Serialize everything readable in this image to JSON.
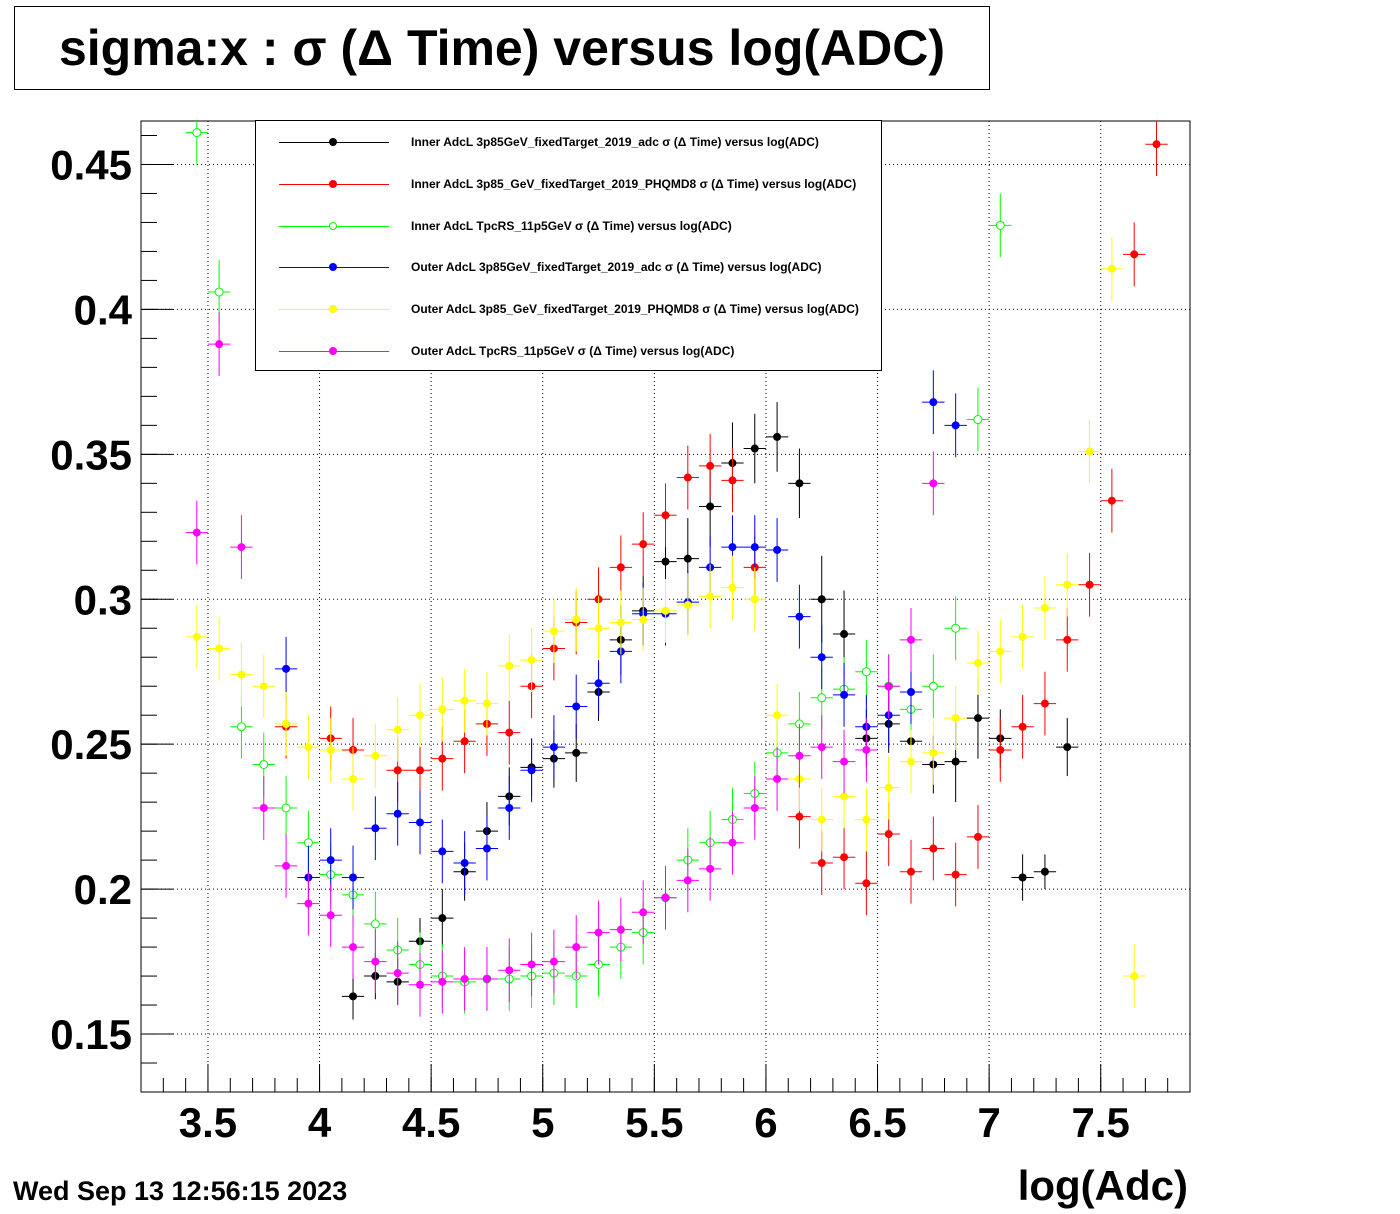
{
  "title": "sigma:x : σ (Δ Time) versus log(ADC)",
  "date": "Wed Sep 13 12:56:15 2023",
  "xlabel": "log(Adc)",
  "chart_data": {
    "type": "scatter",
    "title": "sigma:x : σ (Δ Time) versus log(ADC)",
    "xlabel": "log(Adc)",
    "ylabel": "",
    "xlim": [
      3.2,
      7.9
    ],
    "ylim": [
      0.13,
      0.465
    ],
    "xticks": [
      "3.5",
      "4",
      "4.5",
      "5",
      "5.5",
      "6",
      "6.5",
      "7",
      "7.5"
    ],
    "yticks": [
      "0.15",
      "0.2",
      "0.25",
      "0.3",
      "0.35",
      "0.4",
      "0.45"
    ],
    "grid": true,
    "legend_position": "top",
    "series": [
      {
        "name": "Inner AdcL 3p85GeV_fixedTarget_2019_adc σ (Δ Time) versus log(ADC)",
        "color": "#000000",
        "marker": "filled",
        "x": [
          4.15,
          4.25,
          4.35,
          4.45,
          4.55,
          4.65,
          4.75,
          4.85,
          4.95,
          5.05,
          5.15,
          5.25,
          5.35,
          5.45,
          5.55,
          5.65,
          5.75,
          5.85,
          5.95,
          6.05,
          6.15,
          6.25,
          6.35,
          6.45,
          6.55,
          6.65,
          6.75,
          6.85,
          6.95,
          7.05,
          7.15,
          7.25,
          7.35
        ],
        "y": [
          0.163,
          0.17,
          0.168,
          0.182,
          0.19,
          0.206,
          0.22,
          0.232,
          0.242,
          0.245,
          0.247,
          0.268,
          0.286,
          0.296,
          0.313,
          0.314,
          0.332,
          0.347,
          0.352,
          0.356,
          0.34,
          0.3,
          0.288,
          0.252,
          0.257,
          0.251,
          0.243,
          0.244,
          0.259,
          0.252,
          0.204,
          0.206,
          0.249
        ],
        "err": [
          0.008,
          0.008,
          0.008,
          0.008,
          0.01,
          0.01,
          0.01,
          0.01,
          0.01,
          0.01,
          0.01,
          0.01,
          0.012,
          0.012,
          0.012,
          0.014,
          0.014,
          0.014,
          0.012,
          0.012,
          0.012,
          0.015,
          0.015,
          0.01,
          0.01,
          0.01,
          0.01,
          0.014,
          0.014,
          0.01,
          0.008,
          0.006,
          0.01
        ]
      },
      {
        "name": "Inner AdcL 3p85_GeV_fixedTarget_2019_PHQMD8 σ (Δ Time) versus log(ADC)",
        "color": "#ff0000",
        "marker": "filled",
        "x": [
          3.85,
          4.05,
          4.15,
          4.35,
          4.45,
          4.55,
          4.65,
          4.75,
          4.85,
          4.95,
          5.05,
          5.15,
          5.25,
          5.35,
          5.45,
          5.55,
          5.65,
          5.75,
          5.85,
          5.95,
          6.15,
          6.25,
          6.35,
          6.45,
          6.55,
          6.65,
          6.75,
          6.85,
          6.95,
          7.05,
          7.15,
          7.25,
          7.35,
          7.45,
          7.55,
          7.65,
          7.75
        ],
        "y": [
          0.256,
          0.252,
          0.248,
          0.241,
          0.241,
          0.245,
          0.251,
          0.257,
          0.254,
          0.27,
          0.283,
          0.292,
          0.3,
          0.311,
          0.319,
          0.329,
          0.342,
          0.346,
          0.341,
          0.311,
          0.225,
          0.209,
          0.211,
          0.202,
          0.219,
          0.206,
          0.214,
          0.205,
          0.218,
          0.248,
          0.256,
          0.264,
          0.286,
          0.305,
          0.334,
          0.419,
          0.457
        ]
      },
      {
        "name": "Inner AdcL TpcRS_11p5GeV σ (Δ Time) versus log(ADC)",
        "color": "#00ff00",
        "marker": "open",
        "x": [
          3.45,
          3.55,
          3.65,
          3.75,
          3.85,
          3.95,
          4.05,
          4.15,
          4.25,
          4.35,
          4.45,
          4.55,
          4.65,
          4.75,
          4.85,
          4.95,
          5.05,
          5.15,
          5.25,
          5.35,
          5.45,
          5.55,
          5.65,
          5.75,
          5.85,
          5.95,
          6.05,
          6.15,
          6.25,
          6.35,
          6.45,
          6.55,
          6.65,
          6.75,
          6.85,
          6.95,
          7.05
        ],
        "y": [
          0.461,
          0.406,
          0.256,
          0.243,
          0.228,
          0.216,
          0.205,
          0.198,
          0.188,
          0.179,
          0.174,
          0.17,
          0.168,
          0.169,
          0.169,
          0.17,
          0.171,
          0.17,
          0.174,
          0.18,
          0.185,
          0.197,
          0.21,
          0.216,
          0.224,
          0.233,
          0.247,
          0.257,
          0.266,
          0.269,
          0.275,
          0.27,
          0.262,
          0.27,
          0.29,
          0.362,
          0.429
        ]
      },
      {
        "name": "Outer AdcL 3p85GeV_fixedTarget_2019_adc σ (Δ Time) versus log(ADC)",
        "color": "#0000ff",
        "marker": "filled",
        "x": [
          3.85,
          3.95,
          4.05,
          4.15,
          4.25,
          4.35,
          4.45,
          4.55,
          4.65,
          4.75,
          4.85,
          4.95,
          5.05,
          5.15,
          5.25,
          5.35,
          5.45,
          5.55,
          5.65,
          5.75,
          5.85,
          5.95,
          6.05,
          6.15,
          6.25,
          6.35,
          6.45,
          6.55,
          6.65,
          6.75,
          6.85
        ],
        "y": [
          0.276,
          0.204,
          0.21,
          0.204,
          0.221,
          0.226,
          0.223,
          0.213,
          0.209,
          0.214,
          0.228,
          0.241,
          0.249,
          0.263,
          0.271,
          0.282,
          0.295,
          0.295,
          0.299,
          0.311,
          0.318,
          0.318,
          0.317,
          0.294,
          0.28,
          0.267,
          0.256,
          0.26,
          0.268,
          0.368,
          0.36
        ]
      },
      {
        "name": "Outer AdcL 3p85_GeV_fixedTarget_2019_PHQMD8 σ (Δ Time) versus log(ADC)",
        "color": "#ffff00",
        "marker": "filled",
        "x": [
          3.45,
          3.55,
          3.65,
          3.75,
          3.85,
          3.95,
          4.05,
          4.15,
          4.25,
          4.35,
          4.45,
          4.55,
          4.65,
          4.75,
          4.85,
          4.95,
          5.05,
          5.15,
          5.25,
          5.35,
          5.45,
          5.55,
          5.65,
          5.75,
          5.85,
          5.95,
          6.05,
          6.15,
          6.25,
          6.35,
          6.45,
          6.55,
          6.65,
          6.75,
          6.85,
          6.95,
          7.05,
          7.15,
          7.25,
          7.35,
          7.45,
          7.55,
          7.65
        ],
        "y": [
          0.287,
          0.283,
          0.274,
          0.27,
          0.257,
          0.249,
          0.248,
          0.238,
          0.246,
          0.255,
          0.26,
          0.262,
          0.265,
          0.264,
          0.277,
          0.279,
          0.289,
          0.293,
          0.29,
          0.292,
          0.293,
          0.296,
          0.298,
          0.301,
          0.304,
          0.3,
          0.26,
          0.238,
          0.224,
          0.232,
          0.224,
          0.235,
          0.244,
          0.247,
          0.259,
          0.278,
          0.282,
          0.287,
          0.297,
          0.305,
          0.351,
          0.414,
          0.17
        ]
      },
      {
        "name": "Outer AdcL TpcRS_11p5GeV σ (Δ Time) versus log(ADC)",
        "color": "#ff00ff",
        "marker": "filled",
        "x": [
          3.45,
          3.55,
          3.65,
          3.75,
          3.85,
          3.95,
          4.05,
          4.15,
          4.25,
          4.35,
          4.45,
          4.55,
          4.65,
          4.75,
          4.85,
          4.95,
          5.05,
          5.15,
          5.25,
          5.35,
          5.45,
          5.55,
          5.65,
          5.75,
          5.85,
          5.95,
          6.05,
          6.15,
          6.25,
          6.35,
          6.45,
          6.55,
          6.65,
          6.75
        ],
        "y": [
          0.323,
          0.388,
          0.318,
          0.228,
          0.208,
          0.195,
          0.191,
          0.18,
          0.175,
          0.171,
          0.167,
          0.168,
          0.169,
          0.169,
          0.172,
          0.174,
          0.175,
          0.18,
          0.185,
          0.186,
          0.192,
          0.197,
          0.203,
          0.207,
          0.216,
          0.228,
          0.238,
          0.246,
          0.249,
          0.244,
          0.248,
          0.27,
          0.286,
          0.34
        ]
      }
    ]
  }
}
